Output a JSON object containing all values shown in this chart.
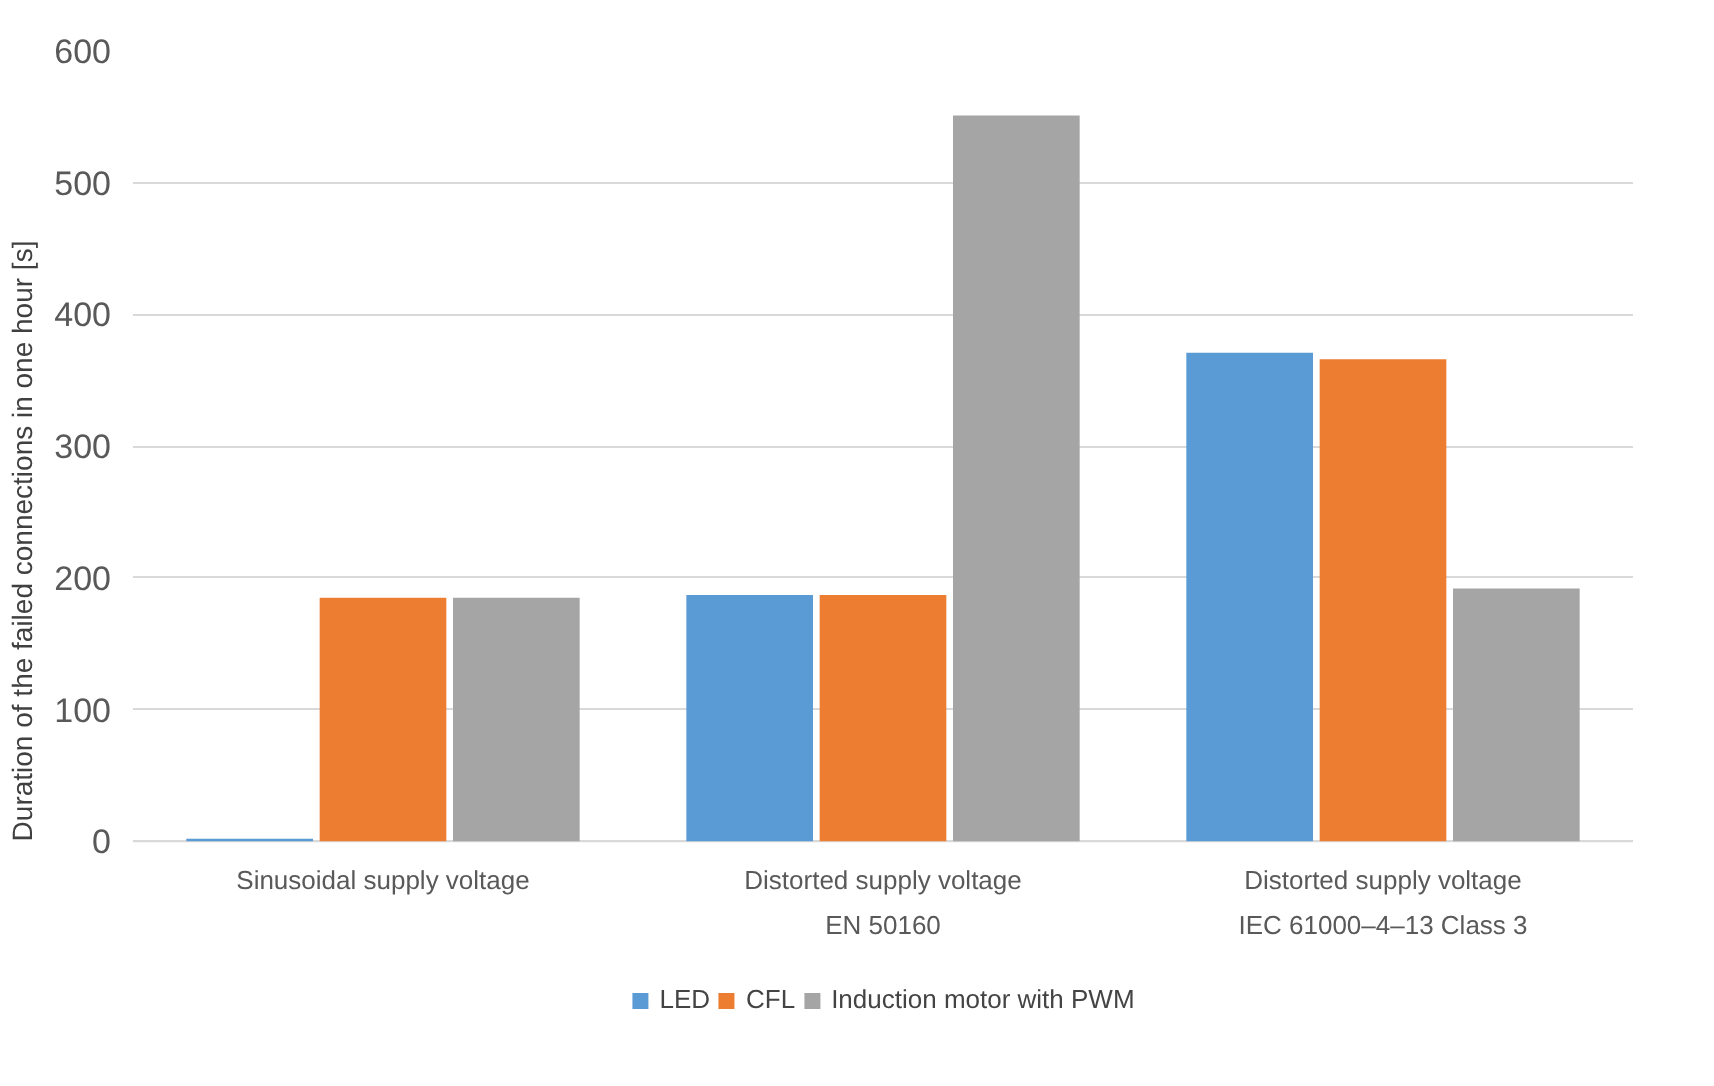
{
  "chart_data": {
    "type": "bar",
    "ylabel": "Duration of the failed connections in one hour [s]",
    "categories": [
      "Sinusoidal supply voltage",
      "Distorted supply voltage\nEN 50160",
      "Distorted supply voltage\nIEC 61000–4–13 Class 3"
    ],
    "series": [
      {
        "name": "LED",
        "color": "#5b9bd5",
        "values": [
          2,
          187,
          371
        ]
      },
      {
        "name": "CFL",
        "color": "#ed7d31",
        "values": [
          185,
          187,
          366
        ]
      },
      {
        "name": "Induction motor with PWM",
        "color": "#a5a5a5",
        "values": [
          185,
          551,
          192
        ]
      }
    ],
    "ylim": [
      0,
      600
    ],
    "yticks": [
      0,
      100,
      200,
      300,
      400,
      500,
      600
    ],
    "grid": "y",
    "legend": "bottom"
  }
}
